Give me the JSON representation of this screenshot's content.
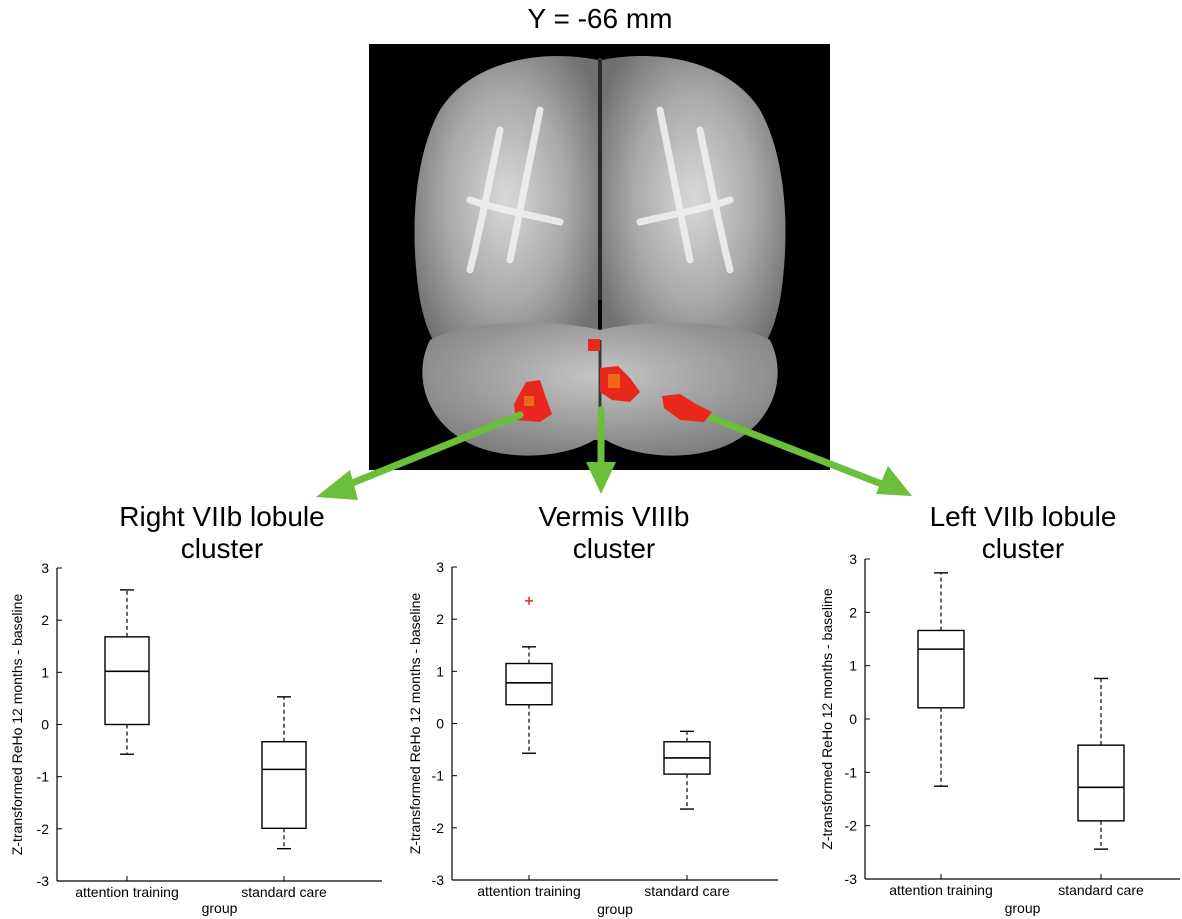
{
  "figure": {
    "slice_label": "Y = -66 mm",
    "arrow_color": "#6cbf3a",
    "cluster_color": "#e8281c",
    "outlier_color": "#e8281c"
  },
  "chart_data": [
    {
      "type": "box",
      "title": "Right VIIb lobule cluster",
      "title_lines": [
        "Right VIIb lobule",
        "cluster"
      ],
      "xlabel": "group",
      "ylabel": "Z-transformed ReHo 12 months - baseline",
      "ylim": [
        -3,
        3
      ],
      "yticks": [
        "-3",
        "-2",
        "-1",
        "0",
        "1",
        "2",
        "3"
      ],
      "categories": [
        "attention training",
        "standard care"
      ],
      "boxes": [
        {
          "name": "attention training",
          "whisker_low": -0.57,
          "q1": 0.0,
          "median": 1.02,
          "q3": 1.68,
          "whisker_high": 2.58,
          "outliers": []
        },
        {
          "name": "standard care",
          "whisker_low": -2.38,
          "q1": -1.99,
          "median": -0.86,
          "q3": -0.33,
          "whisker_high": 0.53,
          "outliers": []
        }
      ]
    },
    {
      "type": "box",
      "title": "Vermis VIIIb cluster",
      "title_lines": [
        "Vermis VIIIb",
        "cluster"
      ],
      "xlabel": "group",
      "ylabel": "Z-transformed ReHo 12 months - baseline",
      "ylim": [
        -3,
        3
      ],
      "yticks": [
        "-3",
        "-2",
        "-1",
        "0",
        "1",
        "2",
        "3"
      ],
      "categories": [
        "attention training",
        "standard care"
      ],
      "boxes": [
        {
          "name": "attention training",
          "whisker_low": -0.57,
          "q1": 0.36,
          "median": 0.78,
          "q3": 1.15,
          "whisker_high": 1.47,
          "outliers": [
            2.35
          ]
        },
        {
          "name": "standard care",
          "whisker_low": -1.64,
          "q1": -0.97,
          "median": -0.66,
          "q3": -0.35,
          "whisker_high": -0.15,
          "outliers": []
        }
      ]
    },
    {
      "type": "box",
      "title": "Left VIIb lobule cluster",
      "title_lines": [
        "Left VIIb lobule",
        "cluster"
      ],
      "xlabel": "group",
      "ylabel": "Z-transformed ReHo 12 months - baseline",
      "ylim": [
        -3,
        3
      ],
      "yticks": [
        "-3",
        "-2",
        "-1",
        "0",
        "1",
        "2",
        "3"
      ],
      "categories": [
        "attention training",
        "standard care"
      ],
      "boxes": [
        {
          "name": "attention training",
          "whisker_low": -1.26,
          "q1": 0.21,
          "median": 1.31,
          "q3": 1.66,
          "whisker_high": 2.74,
          "outliers": []
        },
        {
          "name": "standard care",
          "whisker_low": -2.44,
          "q1": -1.91,
          "median": -1.28,
          "q3": -0.49,
          "whisker_high": 0.76,
          "outliers": []
        }
      ]
    }
  ]
}
